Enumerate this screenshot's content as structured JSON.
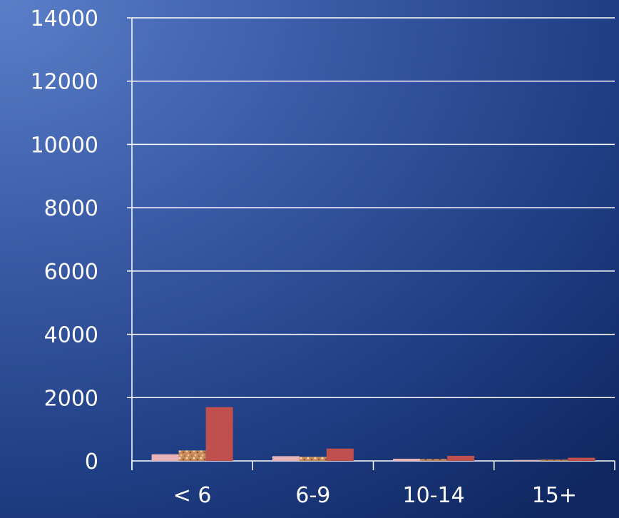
{
  "chart_data": {
    "type": "bar",
    "categories": [
      "< 6",
      "6-9",
      "10-14",
      "15+"
    ],
    "series": [
      {
        "values": [
          210,
          150,
          70,
          30
        ],
        "color": "#e8b4b8",
        "pattern": "solid"
      },
      {
        "values": [
          330,
          130,
          60,
          40
        ],
        "color": "#c98a58",
        "pattern": "speckled"
      },
      {
        "values": [
          1700,
          390,
          160,
          100
        ],
        "color": "#c0504d",
        "pattern": "solid"
      }
    ],
    "ylim": [
      0,
      14000
    ],
    "yticks": [
      0,
      2000,
      4000,
      6000,
      8000,
      10000,
      12000,
      14000
    ],
    "grid": true,
    "legend": "none"
  }
}
